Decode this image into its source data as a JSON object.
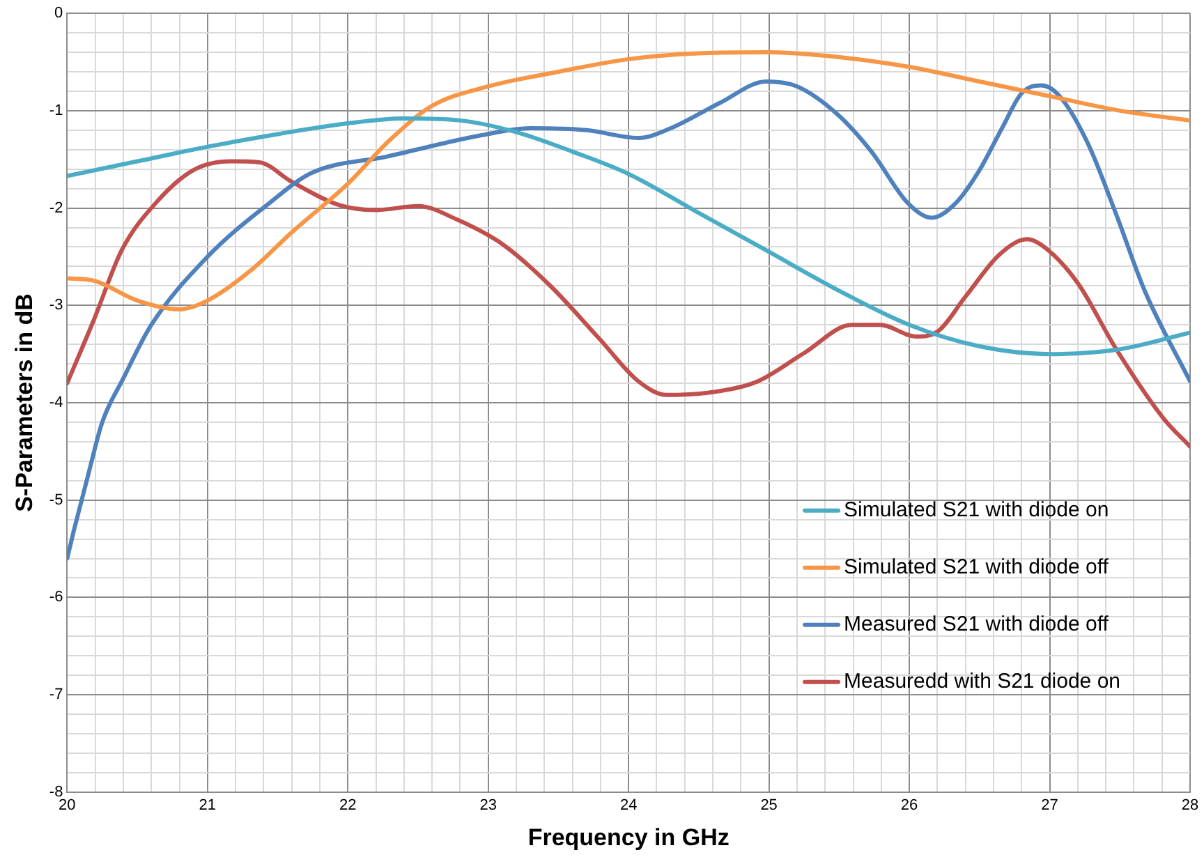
{
  "chart_data": {
    "type": "line",
    "xlabel": "Frequency in GHz",
    "ylabel": "S-Parameters in dB",
    "xlim": [
      20,
      28
    ],
    "xticks": [
      20,
      {
        "value": 20.2,
        "label": null
      },
      {
        "value": 20.4,
        "label": null
      },
      {
        "value": 20.6,
        "label": null
      },
      {
        "value": 20.8,
        "label": null
      },
      21,
      {
        "value": 21.2,
        "label": null
      },
      {
        "value": 21.4,
        "label": null
      },
      {
        "value": 21.6,
        "label": null
      },
      {
        "value": 21.8,
        "label": null
      },
      22,
      {
        "value": 22.2,
        "label": null
      },
      {
        "value": 22.4,
        "label": null
      },
      {
        "value": 22.6,
        "label": null
      },
      {
        "value": 22.8,
        "label": null
      },
      23,
      {
        "value": 23.2,
        "label": null
      },
      {
        "value": 23.4,
        "label": null
      },
      {
        "value": 23.6,
        "label": null
      },
      {
        "value": 23.8,
        "label": null
      },
      24,
      {
        "value": 24.2,
        "label": null
      },
      {
        "value": 24.4,
        "label": null
      },
      {
        "value": 24.6,
        "label": null
      },
      {
        "value": 24.8,
        "label": null
      },
      25,
      {
        "value": 25.2,
        "label": null
      },
      {
        "value": 25.4,
        "label": null
      },
      {
        "value": 25.6,
        "label": null
      },
      {
        "value": 25.8,
        "label": null
      },
      26,
      {
        "value": 26.2,
        "label": null
      },
      {
        "value": 26.4,
        "label": null
      },
      {
        "value": 26.6,
        "label": null
      },
      {
        "value": 26.8,
        "label": null
      },
      27,
      {
        "value": 27.2,
        "label": null
      },
      {
        "value": 27.4,
        "label": null
      },
      {
        "value": 27.6,
        "label": null
      },
      {
        "value": 27.8,
        "label": null
      },
      28
    ],
    "ylim": [
      -8,
      0
    ],
    "yticks": [
      -8,
      {
        "value": -7.8,
        "label": null
      },
      {
        "value": -7.6,
        "label": null
      },
      {
        "value": -7.4,
        "label": null
      },
      {
        "value": -7.2,
        "label": null
      },
      -7,
      {
        "value": -6.8,
        "label": null
      },
      {
        "value": -6.6,
        "label": null
      },
      {
        "value": -6.4,
        "label": null
      },
      {
        "value": -6.2,
        "label": null
      },
      -6,
      {
        "value": -5.8,
        "label": null
      },
      {
        "value": -5.6,
        "label": null
      },
      {
        "value": -5.4,
        "label": null
      },
      {
        "value": -5.2,
        "label": null
      },
      -5,
      {
        "value": -4.8,
        "label": null
      },
      {
        "value": -4.6,
        "label": null
      },
      {
        "value": -4.4,
        "label": null
      },
      {
        "value": -4.2,
        "label": null
      },
      -4,
      {
        "value": -3.8,
        "label": null
      },
      {
        "value": -3.6,
        "label": null
      },
      {
        "value": -3.4,
        "label": null
      },
      {
        "value": -3.2,
        "label": null
      },
      -3,
      {
        "value": -2.8,
        "label": null
      },
      {
        "value": -2.6,
        "label": null
      },
      {
        "value": -2.4,
        "label": null
      },
      {
        "value": -2.2,
        "label": null
      },
      -2,
      {
        "value": -1.8,
        "label": null
      },
      {
        "value": -1.6,
        "label": null
      },
      {
        "value": -1.4,
        "label": null
      },
      {
        "value": -1.2,
        "label": null
      },
      -1,
      {
        "value": -0.8,
        "label": null
      },
      {
        "value": -0.6,
        "label": null
      },
      {
        "value": -0.4,
        "label": null
      },
      {
        "value": -0.2,
        "label": null
      },
      0
    ],
    "grid": true,
    "legend": "bottom right",
    "marker": "none",
    "line_style": "solid",
    "series": [
      {
        "name": "Simulated S21 with diode on",
        "color": "#4bacc6",
        "x": [
          20,
          20.5,
          21,
          21.5,
          22,
          22.4,
          22.8,
          23.2,
          23.6,
          24,
          24.5,
          25,
          25.5,
          26,
          26.5,
          27,
          27.5,
          28
        ],
        "values": [
          -1.67,
          -1.52,
          -1.37,
          -1.24,
          -1.13,
          -1.08,
          -1.1,
          -1.22,
          -1.42,
          -1.65,
          -2.05,
          -2.45,
          -2.85,
          -3.2,
          -3.42,
          -3.5,
          -3.45,
          -3.28
        ]
      },
      {
        "name": "Simulated S21 with diode off",
        "color": "#f79646",
        "x": [
          20,
          20.2,
          20.5,
          20.8,
          21,
          21.3,
          21.6,
          22,
          22.3,
          22.6,
          23,
          23.5,
          24,
          24.5,
          25,
          25.5,
          26,
          26.5,
          27,
          27.5,
          28
        ],
        "values": [
          -2.72,
          -2.75,
          -2.95,
          -3.04,
          -2.95,
          -2.65,
          -2.25,
          -1.75,
          -1.3,
          -0.95,
          -0.75,
          -0.6,
          -0.47,
          -0.41,
          -0.4,
          -0.45,
          -0.55,
          -0.7,
          -0.85,
          -1.0,
          -1.1
        ]
      },
      {
        "name": "Measured S21 with diode off",
        "color": "#4f81bd",
        "x": [
          20,
          20.05,
          20.15,
          20.25,
          20.4,
          20.6,
          21,
          21.44,
          21.74,
          22.28,
          22.96,
          23.3,
          23.7,
          24.07,
          24.3,
          24.65,
          24.98,
          25.2,
          25.49,
          25.73,
          25.99,
          26.16,
          26.33,
          26.5,
          26.66,
          26.8,
          26.94,
          27.07,
          27.27,
          27.47,
          27.68,
          28
        ],
        "values": [
          -5.6,
          -5.3,
          -4.74,
          -4.2,
          -3.75,
          -3.2,
          -2.5,
          -1.95,
          -1.64,
          -1.47,
          -1.25,
          -1.18,
          -1.2,
          -1.28,
          -1.18,
          -0.92,
          -0.7,
          -0.75,
          -1.04,
          -1.42,
          -1.95,
          -2.1,
          -1.95,
          -1.61,
          -1.18,
          -0.82,
          -0.74,
          -0.85,
          -1.33,
          -2.05,
          -2.86,
          -3.78
        ]
      },
      {
        "name": "Measuredd with S21 diode on",
        "color": "#c0504d",
        "x": [
          20,
          20.19,
          20.39,
          20.63,
          20.9,
          21.17,
          21.37,
          21.6,
          21.94,
          22.2,
          22.5,
          22.78,
          23.11,
          23.45,
          23.79,
          24.07,
          24.27,
          24.65,
          24.92,
          25.25,
          25.59,
          25.79,
          26.05,
          26.2,
          26.4,
          26.64,
          26.84,
          26.97,
          27.2,
          27.47,
          27.81,
          28
        ],
        "values": [
          -3.8,
          -3.15,
          -2.43,
          -1.95,
          -1.61,
          -1.52,
          -1.53,
          -1.73,
          -1.97,
          -2.02,
          -1.98,
          -2.12,
          -2.38,
          -2.81,
          -3.34,
          -3.78,
          -3.92,
          -3.88,
          -3.78,
          -3.49,
          -3.2,
          -3.2,
          -3.32,
          -3.27,
          -2.91,
          -2.48,
          -2.32,
          -2.41,
          -2.77,
          -3.44,
          -4.16,
          -4.45
        ]
      }
    ]
  }
}
